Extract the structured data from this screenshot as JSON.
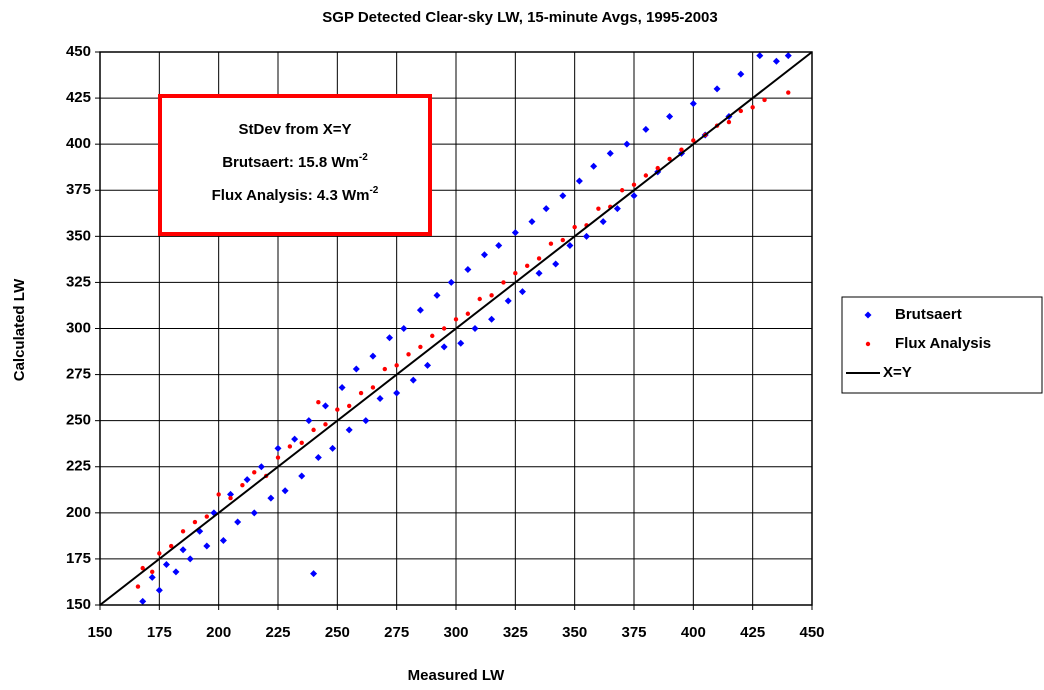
{
  "chart_data": {
    "type": "scatter",
    "title": "SGP Detected Clear-sky LW, 15-minute Avgs, 1995-2003",
    "xlabel": "Measured LW",
    "ylabel": "Calculated LW",
    "xlim": [
      150,
      450
    ],
    "ylim": [
      150,
      450
    ],
    "xticks": [
      150,
      175,
      200,
      225,
      250,
      275,
      300,
      325,
      350,
      375,
      400,
      425,
      450
    ],
    "yticks": [
      150,
      175,
      200,
      225,
      250,
      275,
      300,
      325,
      350,
      375,
      400,
      425,
      450
    ],
    "grid": true,
    "legend": "right",
    "annotation": {
      "border_color": "#ff0000",
      "lines": [
        {
          "text": "StDev from X=Y"
        },
        {
          "text": "Brutsaert: 15.8 Wm",
          "superscript": "-2"
        },
        {
          "text": "Flux Analysis: 4.3 Wm",
          "superscript": "-2"
        }
      ]
    },
    "series": [
      {
        "name": "Brutsaert",
        "color": "#0000ff",
        "marker": "diamond",
        "x": [
          168,
          172,
          175,
          178,
          182,
          185,
          188,
          192,
          195,
          198,
          202,
          205,
          208,
          212,
          215,
          218,
          222,
          225,
          228,
          232,
          235,
          238,
          240,
          242,
          245,
          248,
          252,
          255,
          258,
          262,
          265,
          268,
          272,
          275,
          278,
          282,
          285,
          288,
          292,
          295,
          298,
          302,
          305,
          308,
          312,
          315,
          318,
          322,
          325,
          328,
          332,
          335,
          338,
          342,
          345,
          348,
          352,
          355,
          358,
          362,
          365,
          368,
          372,
          375,
          380,
          385,
          390,
          395,
          400,
          405,
          410,
          415,
          420,
          428,
          435,
          440
        ],
        "values": [
          152,
          165,
          158,
          172,
          168,
          180,
          175,
          190,
          182,
          200,
          185,
          210,
          195,
          218,
          200,
          225,
          208,
          235,
          212,
          240,
          220,
          250,
          167,
          230,
          258,
          235,
          268,
          245,
          278,
          250,
          285,
          262,
          295,
          265,
          300,
          272,
          310,
          280,
          318,
          290,
          325,
          292,
          332,
          300,
          340,
          305,
          345,
          315,
          352,
          320,
          358,
          330,
          365,
          335,
          372,
          345,
          380,
          350,
          388,
          358,
          395,
          365,
          400,
          372,
          408,
          385,
          415,
          395,
          422,
          405,
          430,
          415,
          438,
          448,
          445,
          448
        ]
      },
      {
        "name": "Flux Analysis",
        "color": "#ff0000",
        "marker": "circle",
        "x": [
          166,
          168,
          172,
          175,
          180,
          185,
          190,
          195,
          200,
          205,
          210,
          215,
          220,
          225,
          230,
          235,
          240,
          242,
          245,
          250,
          255,
          260,
          265,
          270,
          275,
          280,
          285,
          290,
          295,
          300,
          305,
          310,
          315,
          320,
          325,
          330,
          335,
          340,
          345,
          350,
          355,
          360,
          365,
          370,
          375,
          380,
          385,
          390,
          395,
          400,
          405,
          410,
          415,
          420,
          425,
          430,
          440
        ],
        "values": [
          160,
          170,
          168,
          178,
          182,
          190,
          195,
          198,
          210,
          208,
          215,
          222,
          220,
          230,
          236,
          238,
          245,
          260,
          248,
          256,
          258,
          265,
          268,
          278,
          280,
          286,
          290,
          296,
          300,
          305,
          308,
          316,
          318,
          325,
          330,
          334,
          338,
          346,
          348,
          355,
          356,
          365,
          366,
          375,
          378,
          383,
          387,
          392,
          397,
          402,
          405,
          410,
          412,
          418,
          420,
          424,
          428
        ]
      },
      {
        "name": "X=Y",
        "color": "#000000",
        "marker": "line",
        "x": [
          150,
          450
        ],
        "values": [
          150,
          450
        ]
      }
    ]
  }
}
